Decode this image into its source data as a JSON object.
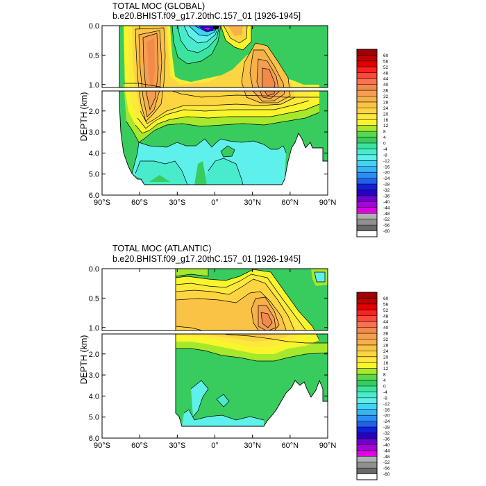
{
  "panels": [
    {
      "title_line1": "TOTAL MOC (GLOBAL)",
      "title_line2": "b.e20.BHIST.f09_g17.20thC.157_01 [1926-1945]"
    },
    {
      "title_line1": "TOTAL MOC (ATLANTIC)",
      "title_line2": "b.e20.BHIST.f09_g17.20thC.157_01 [1926-1945]"
    }
  ],
  "colorbar_labels": [
    "60",
    "56",
    "52",
    "48",
    "44",
    "40",
    "36",
    "32",
    "28",
    "24",
    "20",
    "16",
    "12",
    "8",
    "4",
    "0",
    "-4",
    "-8",
    "-12",
    "-16",
    "-20",
    "-24",
    "-28",
    "-32",
    "-36",
    "-40",
    "-44",
    "-48",
    "-52",
    "-56",
    "-60"
  ],
  "colorbar_colors": [
    "#a00000",
    "#c00000",
    "#e00000",
    "#ff2020",
    "#ff4a3a",
    "#ff7050",
    "#f28a4a",
    "#f39e50",
    "#f7b04a",
    "#fac346",
    "#fcd540",
    "#fde83c",
    "#f8f52c",
    "#a6e82c",
    "#58d84a",
    "#38cc5e",
    "#3ae49e",
    "#48eccc",
    "#5ef0ea",
    "#40d4f4",
    "#38b4f6",
    "#2890f4",
    "#2060ea",
    "#1020d8",
    "#2800c0",
    "#7000d0",
    "#a800d8",
    "#e000e8",
    "#b0b0b0",
    "#909090",
    "#6a6a6a",
    "#ffffff"
  ],
  "chart_data": [
    {
      "type": "contour",
      "title": "TOTAL MOC (GLOBAL)",
      "subtitle": "b.e20.BHIST.f09_g17.20thC.157_01 [1926-1945]",
      "ylabel": "DEPTH (km)",
      "xlim": [
        -90,
        90
      ],
      "ylim": [
        6.0,
        0.0
      ],
      "upper_yticks": [
        "0.0",
        "0.5",
        "1.0"
      ],
      "lower_yticks": [
        "2.0",
        "3.0",
        "4.0",
        "5.0",
        "6.0"
      ],
      "xticks": [
        "90°S",
        "60°S",
        "30°S",
        "0°",
        "30°N",
        "60°N",
        "90°N"
      ],
      "levels": [
        -60,
        60,
        4
      ],
      "features": [
        {
          "lat": -45,
          "depth_km": 2.0,
          "value_sv": 28
        },
        {
          "lat": -15,
          "depth_km": 0.05,
          "value_sv": -36
        },
        {
          "lat": 38,
          "depth_km": 1.0,
          "value_sv": 34
        },
        {
          "lat": -10,
          "depth_km": 4.5,
          "value_sv": -6
        }
      ]
    },
    {
      "type": "contour",
      "title": "TOTAL MOC (ATLANTIC)",
      "subtitle": "b.e20.BHIST.f09_g17.20thC.157_01 [1926-1945]",
      "ylabel": "DEPTH (km)",
      "xlim": [
        -90,
        90
      ],
      "ylim": [
        6.0,
        0.0
      ],
      "upper_yticks": [
        "0.0",
        "0.5",
        "1.0"
      ],
      "lower_yticks": [
        "2.0",
        "3.0",
        "4.0",
        "5.0",
        "6.0"
      ],
      "xticks": [
        "90°S",
        "60°S",
        "30°S",
        "0°",
        "30°N",
        "60°N",
        "90°N"
      ],
      "levels": [
        -60,
        60,
        4
      ],
      "features": [
        {
          "lat": 38,
          "depth_km": 1.0,
          "value_sv": 30
        },
        {
          "lat": 0,
          "depth_km": 1.2,
          "value_sv": 22
        },
        {
          "lat": -20,
          "depth_km": 5.2,
          "value_sv": -4
        }
      ]
    }
  ]
}
